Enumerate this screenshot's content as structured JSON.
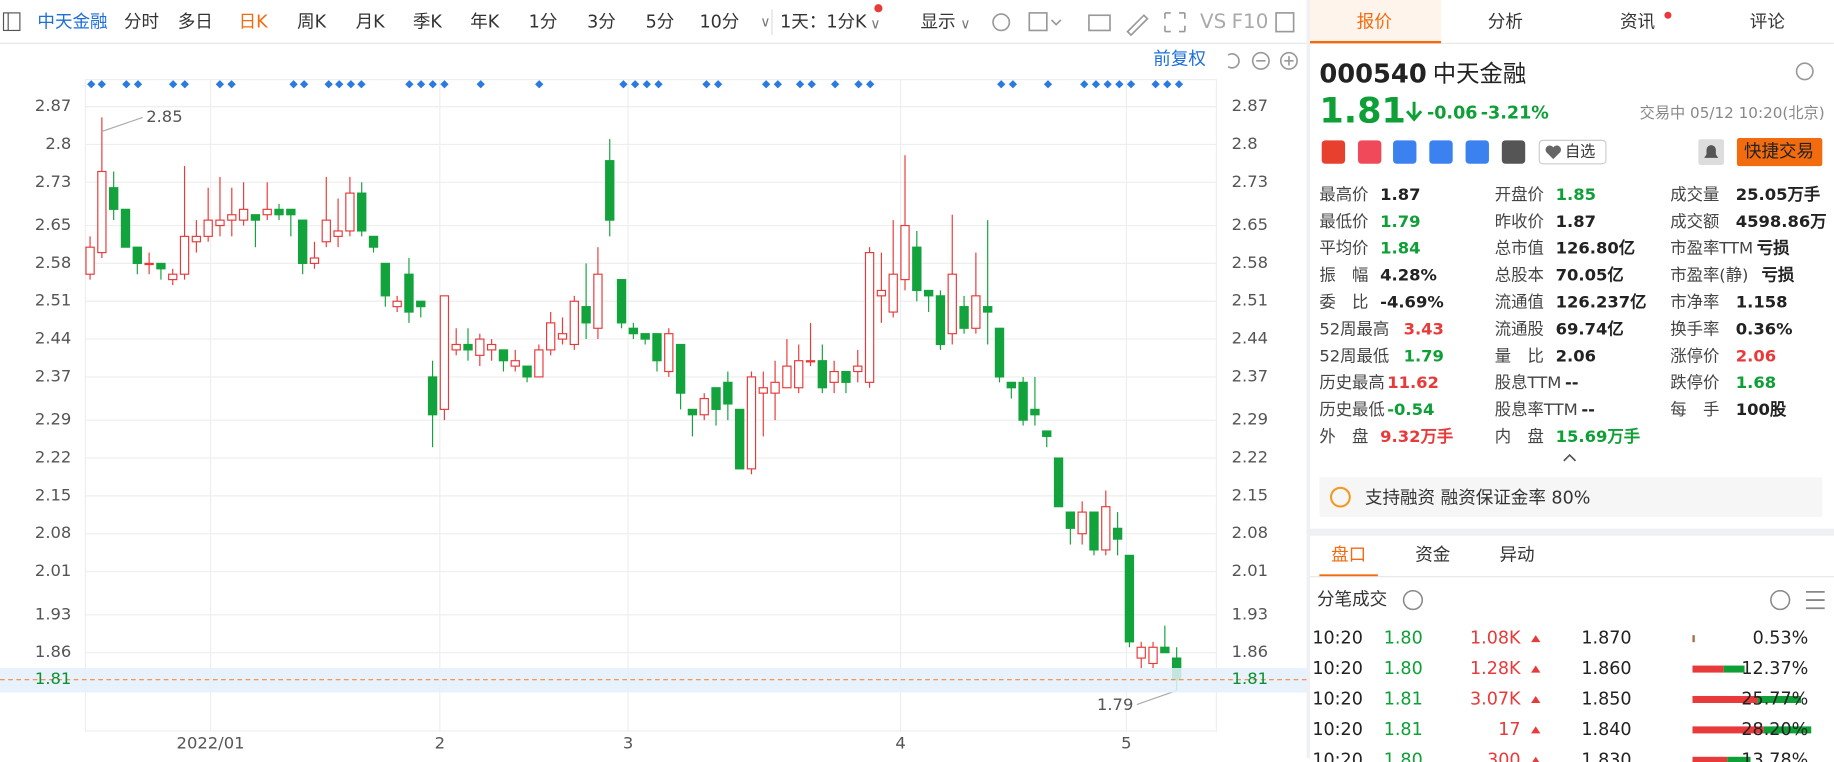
{
  "toolbar": {
    "stock": "中天金融",
    "tabs": [
      "分时",
      "多日",
      "日K",
      "周K",
      "月K",
      "季K",
      "年K",
      "1分",
      "3分",
      "5分",
      "10分"
    ],
    "period": "1天：1分K",
    "display": "显示",
    "vs": "VS",
    "f10": "F10"
  },
  "chart_data": {
    "type": "candlestick",
    "adjust": "前复权",
    "x_labels": [
      "2022/01",
      "2",
      "3",
      "4",
      "5"
    ],
    "ylim": [
      1.715,
      2.92
    ],
    "yticks": [
      2.87,
      2.8,
      2.73,
      2.65,
      2.58,
      2.51,
      2.44,
      2.37,
      2.29,
      2.22,
      2.15,
      2.08,
      2.01,
      1.93,
      1.86
    ],
    "high_label": 2.85,
    "low_label": 1.79,
    "last": 1.81,
    "up_color": "#e83a3a",
    "down_color": "#12a33c",
    "grid": true,
    "ohlc": [
      [
        2.56,
        2.63,
        2.55,
        2.61
      ],
      [
        2.6,
        2.85,
        2.59,
        2.75
      ],
      [
        2.72,
        2.75,
        2.66,
        2.68
      ],
      [
        2.68,
        2.68,
        2.61,
        2.61
      ],
      [
        2.61,
        2.61,
        2.56,
        2.58
      ],
      [
        2.58,
        2.6,
        2.56,
        2.58
      ],
      [
        2.58,
        2.58,
        2.55,
        2.57
      ],
      [
        2.55,
        2.57,
        2.54,
        2.56
      ],
      [
        2.56,
        2.76,
        2.55,
        2.63
      ],
      [
        2.62,
        2.66,
        2.6,
        2.63
      ],
      [
        2.63,
        2.72,
        2.62,
        2.66
      ],
      [
        2.65,
        2.74,
        2.63,
        2.66
      ],
      [
        2.66,
        2.72,
        2.63,
        2.67
      ],
      [
        2.66,
        2.73,
        2.65,
        2.68
      ],
      [
        2.67,
        2.67,
        2.61,
        2.66
      ],
      [
        2.67,
        2.73,
        2.66,
        2.68
      ],
      [
        2.68,
        2.69,
        2.66,
        2.67
      ],
      [
        2.68,
        2.68,
        2.63,
        2.67
      ],
      [
        2.66,
        2.66,
        2.56,
        2.58
      ],
      [
        2.58,
        2.62,
        2.57,
        2.59
      ],
      [
        2.62,
        2.74,
        2.61,
        2.66
      ],
      [
        2.63,
        2.7,
        2.61,
        2.64
      ],
      [
        2.64,
        2.74,
        2.63,
        2.71
      ],
      [
        2.71,
        2.73,
        2.63,
        2.64
      ],
      [
        2.63,
        2.63,
        2.6,
        2.61
      ],
      [
        2.58,
        2.58,
        2.5,
        2.52
      ],
      [
        2.5,
        2.52,
        2.49,
        2.51
      ],
      [
        2.56,
        2.59,
        2.47,
        2.49
      ],
      [
        2.51,
        2.51,
        2.48,
        2.5
      ],
      [
        2.37,
        2.4,
        2.24,
        2.3
      ],
      [
        2.31,
        2.52,
        2.29,
        2.52
      ],
      [
        2.42,
        2.46,
        2.41,
        2.43
      ],
      [
        2.43,
        2.46,
        2.4,
        2.42
      ],
      [
        2.41,
        2.45,
        2.39,
        2.44
      ],
      [
        2.42,
        2.44,
        2.4,
        2.43
      ],
      [
        2.42,
        2.42,
        2.38,
        2.4
      ],
      [
        2.39,
        2.42,
        2.38,
        2.4
      ],
      [
        2.39,
        2.39,
        2.36,
        2.37
      ],
      [
        2.37,
        2.43,
        2.37,
        2.42
      ],
      [
        2.42,
        2.49,
        2.41,
        2.47
      ],
      [
        2.44,
        2.48,
        2.43,
        2.45
      ],
      [
        2.43,
        2.52,
        2.42,
        2.51
      ],
      [
        2.5,
        2.58,
        2.44,
        2.47
      ],
      [
        2.46,
        2.61,
        2.44,
        2.56
      ],
      [
        2.77,
        2.81,
        2.63,
        2.66
      ],
      [
        2.55,
        2.55,
        2.46,
        2.47
      ],
      [
        2.46,
        2.47,
        2.44,
        2.45
      ],
      [
        2.45,
        2.45,
        2.43,
        2.44
      ],
      [
        2.45,
        2.45,
        2.38,
        2.4
      ],
      [
        2.38,
        2.46,
        2.37,
        2.45
      ],
      [
        2.43,
        2.43,
        2.31,
        2.34
      ],
      [
        2.31,
        2.31,
        2.26,
        2.3
      ],
      [
        2.3,
        2.34,
        2.29,
        2.33
      ],
      [
        2.35,
        2.35,
        2.28,
        2.31
      ],
      [
        2.36,
        2.38,
        2.29,
        2.32
      ],
      [
        2.31,
        2.31,
        2.2,
        2.2
      ],
      [
        2.2,
        2.38,
        2.19,
        2.37
      ],
      [
        2.34,
        2.38,
        2.26,
        2.35
      ],
      [
        2.34,
        2.4,
        2.29,
        2.36
      ],
      [
        2.35,
        2.44,
        2.35,
        2.39
      ],
      [
        2.35,
        2.43,
        2.34,
        2.4
      ],
      [
        2.4,
        2.47,
        2.39,
        2.4
      ],
      [
        2.4,
        2.43,
        2.34,
        2.35
      ],
      [
        2.36,
        2.4,
        2.34,
        2.38
      ],
      [
        2.38,
        2.38,
        2.34,
        2.36
      ],
      [
        2.38,
        2.42,
        2.36,
        2.39
      ],
      [
        2.36,
        2.61,
        2.35,
        2.6
      ],
      [
        2.52,
        2.6,
        2.47,
        2.53
      ],
      [
        2.49,
        2.66,
        2.48,
        2.56
      ],
      [
        2.55,
        2.78,
        2.53,
        2.65
      ],
      [
        2.61,
        2.64,
        2.51,
        2.53
      ],
      [
        2.53,
        2.53,
        2.49,
        2.52
      ],
      [
        2.52,
        2.53,
        2.42,
        2.43
      ],
      [
        2.45,
        2.67,
        2.43,
        2.56
      ],
      [
        2.5,
        2.52,
        2.45,
        2.46
      ],
      [
        2.46,
        2.6,
        2.45,
        2.52
      ],
      [
        2.5,
        2.66,
        2.43,
        2.49
      ],
      [
        2.46,
        2.46,
        2.36,
        2.37
      ],
      [
        2.36,
        2.36,
        2.33,
        2.35
      ],
      [
        2.36,
        2.37,
        2.28,
        2.29
      ],
      [
        2.31,
        2.37,
        2.28,
        2.3
      ],
      [
        2.27,
        2.27,
        2.24,
        2.26
      ],
      [
        2.22,
        2.22,
        2.13,
        2.13
      ],
      [
        2.12,
        2.12,
        2.06,
        2.09
      ],
      [
        2.08,
        2.14,
        2.06,
        2.12
      ],
      [
        2.12,
        2.12,
        2.04,
        2.05
      ],
      [
        2.05,
        2.16,
        2.04,
        2.13
      ],
      [
        2.09,
        2.12,
        2.04,
        2.07
      ],
      [
        2.04,
        2.04,
        1.87,
        1.88
      ],
      [
        1.85,
        1.88,
        1.83,
        1.87
      ],
      [
        1.84,
        1.88,
        1.83,
        1.87
      ],
      [
        1.87,
        1.91,
        1.86,
        1.86
      ],
      [
        1.85,
        1.87,
        1.79,
        1.81
      ]
    ]
  },
  "panel": {
    "tabs": [
      "报价",
      "分析",
      "资讯",
      "评论"
    ],
    "quote": {
      "code": "000540",
      "name": "中天金融",
      "price": 1.81,
      "change": "-0.06",
      "pct": "-3.21%",
      "status": "交易中 05/12 10:20(北京)",
      "watch": "自选",
      "trade": "快捷交易"
    },
    "stats": [
      [
        {
          "label": "最高价",
          "value": 1.87,
          "color": "flat"
        },
        {
          "label": "最低价",
          "value": 1.79,
          "color": "down"
        },
        {
          "label": "平均价",
          "value": 1.84,
          "color": "down"
        },
        {
          "label": "振　幅",
          "value": "4.28%",
          "color": "flat"
        },
        {
          "label": "委　比",
          "value": "-4.69%",
          "color": "flat"
        },
        {
          "label": "52周最高",
          "value": 3.43,
          "color": "up"
        },
        {
          "label": "52周最低",
          "value": 1.79,
          "color": "down"
        },
        {
          "label": "历史最高",
          "value": 11.62,
          "color": "up"
        },
        {
          "label": "历史最低",
          "value": -0.54,
          "color": "down"
        },
        {
          "label": "外　盘",
          "value": "9.32万手",
          "color": "up"
        }
      ],
      [
        {
          "label": "开盘价",
          "value": 1.85,
          "color": "down"
        },
        {
          "label": "昨收价",
          "value": 1.87,
          "color": "flat"
        },
        {
          "label": "总市值",
          "value": "126.80亿",
          "color": "flat"
        },
        {
          "label": "总股本",
          "value": "70.05亿",
          "color": "flat"
        },
        {
          "label": "流通值",
          "value": "126.237亿",
          "color": "flat"
        },
        {
          "label": "流通股",
          "value": "69.74亿",
          "color": "flat"
        },
        {
          "label": "量　比",
          "value": 2.06,
          "color": "flat"
        },
        {
          "label": "股息TTM",
          "value": "--",
          "color": "flat"
        },
        {
          "label": "股息率TTM",
          "value": "--",
          "color": "flat"
        },
        {
          "label": "内　盘",
          "value": "15.69万手",
          "color": "down"
        }
      ],
      [
        {
          "label": "成交量",
          "value": "25.05万手",
          "color": "flat"
        },
        {
          "label": "成交额",
          "value": "4598.86万",
          "color": "flat"
        },
        {
          "label": "市盈率TTM",
          "value": "亏损",
          "color": "flat"
        },
        {
          "label": "市盈率(静)",
          "value": "亏损",
          "color": "flat"
        },
        {
          "label": "市净率",
          "value": 1.158,
          "color": "flat"
        },
        {
          "label": "换手率",
          "value": "0.36%",
          "color": "flat"
        },
        {
          "label": "涨停价",
          "value": 2.06,
          "color": "up"
        },
        {
          "label": "跌停价",
          "value": 1.68,
          "color": "down"
        },
        {
          "label": "每　手",
          "value": "100股",
          "color": "flat"
        }
      ]
    ],
    "margin": "支持融资 融资保证金率 80%",
    "subtabs": [
      "盘口",
      "资金",
      "异动"
    ],
    "ticks_title": "分笔成交",
    "trades": [
      {
        "time": "10:20",
        "price": "1.80",
        "volume": "1.08K",
        "level": "1.870",
        "pct": 0.53,
        "pct_label": "0.53%"
      },
      {
        "time": "10:20",
        "price": "1.80",
        "volume": "1.28K",
        "level": "1.860",
        "pct": 12.37,
        "pct_label": "12.37%"
      },
      {
        "time": "10:20",
        "price": "1.81",
        "volume": "3.07K",
        "level": "1.850",
        "pct": 25.77,
        "pct_label": "25.77%"
      },
      {
        "time": "10:20",
        "price": "1.81",
        "volume": 17,
        "level": "1.840",
        "pct": 28.2,
        "pct_label": "28.20%"
      },
      {
        "time": "10:20",
        "price": "1.80",
        "volume": 300,
        "level": "1.830",
        "pct": 13.78,
        "pct_label": "13.78%"
      }
    ]
  }
}
